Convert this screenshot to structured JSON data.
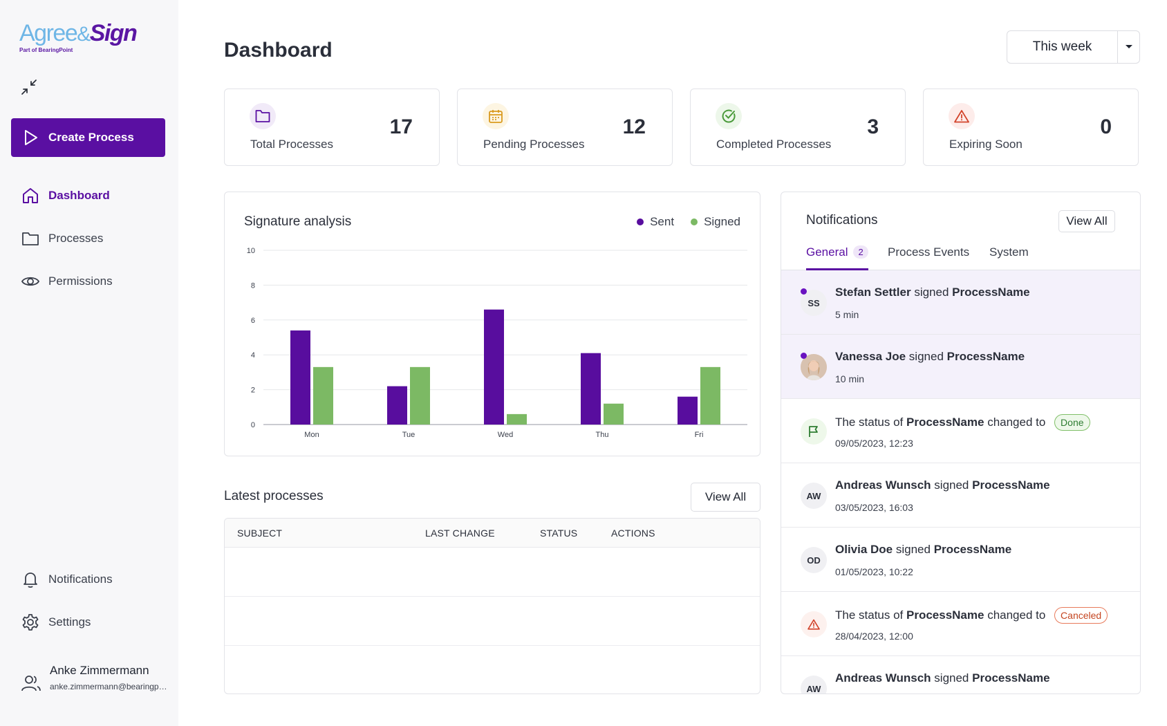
{
  "app": {
    "logo_part1": "Agree",
    "logo_amp": "&",
    "logo_part2": "Sign",
    "logo_sub": "Part of BearingPoint"
  },
  "sidebar": {
    "create_label": "Create Process",
    "nav": [
      {
        "label": "Dashboard",
        "icon": "home-icon"
      },
      {
        "label": "Processes",
        "icon": "folder-icon"
      },
      {
        "label": "Permissions",
        "icon": "eye-icon"
      }
    ],
    "bottom_nav": [
      {
        "label": "Notifications",
        "icon": "bell-icon"
      },
      {
        "label": "Settings",
        "icon": "gear-icon"
      }
    ],
    "user": {
      "name": "Anke Zimmermann",
      "email": "anke.zimmermann@bearingpoint.com"
    }
  },
  "header": {
    "title": "Dashboard",
    "period": "This week"
  },
  "stats": [
    {
      "label": "Total Processes",
      "value": "17",
      "icon": "folder-icon",
      "color": "#5a0fa2",
      "bg": "#f1eaf8"
    },
    {
      "label": "Pending Processes",
      "value": "12",
      "icon": "calendar-icon",
      "color": "#d99a1e",
      "bg": "#fdf5e2"
    },
    {
      "label": "Completed Processes",
      "value": "3",
      "icon": "check-circle-icon",
      "color": "#4a9a3a",
      "bg": "#edf7ea"
    },
    {
      "label": "Expiring Soon",
      "value": "0",
      "icon": "warning-icon",
      "color": "#d2432a",
      "bg": "#fdecea"
    }
  ],
  "chart_data": {
    "type": "bar",
    "title": "Signature analysis",
    "categories": [
      "Mon",
      "Tue",
      "Wed",
      "Thu",
      "Fri"
    ],
    "series": [
      {
        "name": "Sent",
        "color": "#580d9e",
        "values": [
          5.4,
          2.2,
          6.6,
          4.1,
          1.6
        ]
      },
      {
        "name": "Signed",
        "color": "#7cb964",
        "values": [
          3.3,
          3.3,
          0.6,
          1.2,
          3.3
        ]
      }
    ],
    "yticks": [
      "0",
      "2",
      "4",
      "6",
      "8",
      "10"
    ],
    "ylim": [
      0,
      10
    ],
    "grid": true,
    "legend": "top-right"
  },
  "latest": {
    "title": "Latest processes",
    "view_all": "View All",
    "columns": [
      "SUBJECT",
      "LAST CHANGE",
      "STATUS",
      "ACTIONS"
    ],
    "rows": []
  },
  "notifications": {
    "title": "Notifications",
    "view_all": "View All",
    "tabs": [
      {
        "label": "General",
        "badge": "2"
      },
      {
        "label": "Process Events"
      },
      {
        "label": "System"
      }
    ],
    "items": [
      {
        "avatar": "SS",
        "name": "Stefan Settler",
        "action": " signed ",
        "process": "ProcessName",
        "time": "5 min",
        "unread": true
      },
      {
        "avatar": "photo",
        "name": "Vanessa Joe",
        "action": " signed ",
        "process": "ProcessName",
        "time": "10 min",
        "unread": true
      },
      {
        "avatar": "flag",
        "prefix": "The status of ",
        "process": "ProcessName",
        "suffix": " changed to ",
        "status": "Done",
        "time": "09/05/2023, 12:23"
      },
      {
        "avatar": "AW",
        "name": "Andreas Wunsch",
        "action": " signed ",
        "process": "ProcessName",
        "time": "03/05/2023, 16:03"
      },
      {
        "avatar": "OD",
        "name": "Olivia Doe",
        "action": " signed ",
        "process": "ProcessName",
        "time": "01/05/2023, 10:22"
      },
      {
        "avatar": "warning",
        "prefix": "The status of ",
        "process": "ProcessName",
        "suffix": " changed to ",
        "status": "Canceled",
        "time": "28/04/2023, 12:00"
      },
      {
        "avatar": "AW",
        "name": "Andreas Wunsch",
        "action": " signed ",
        "process": "ProcessName",
        "time": ""
      }
    ]
  }
}
